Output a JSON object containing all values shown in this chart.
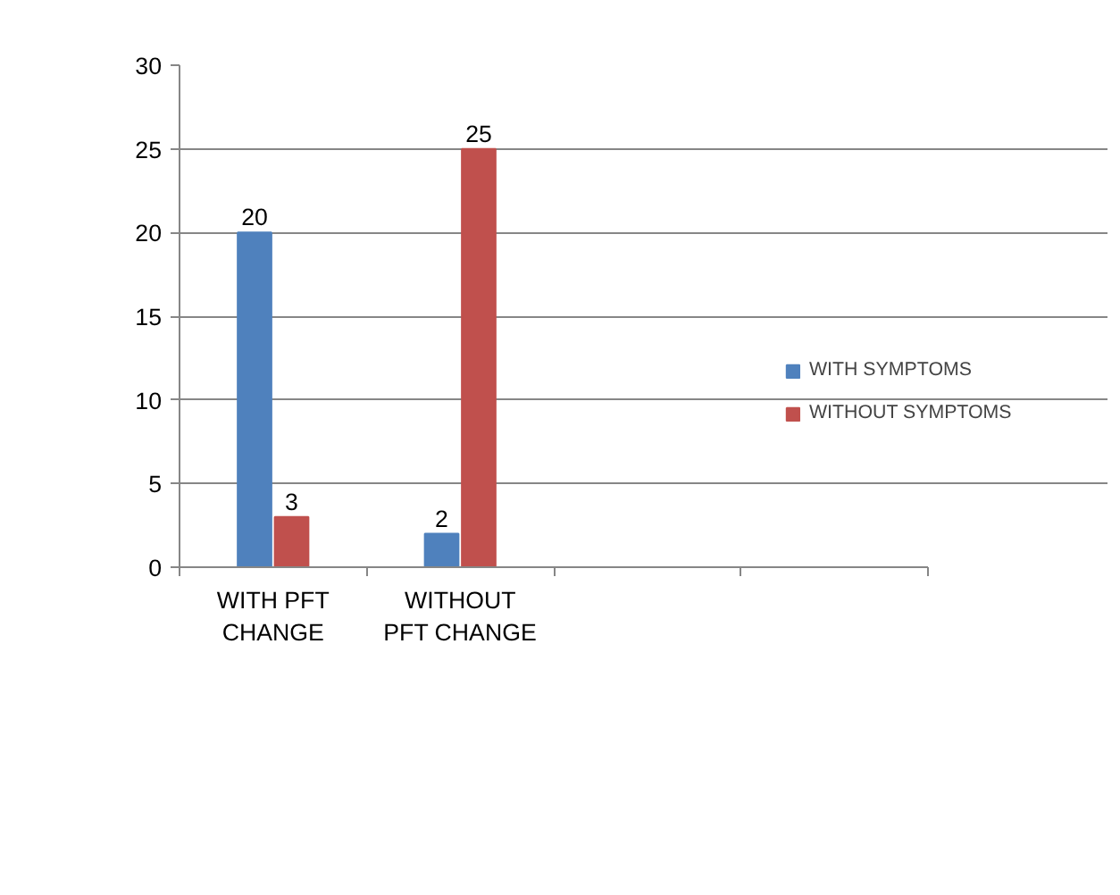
{
  "chart_data": {
    "type": "bar",
    "categories": [
      "WITH PFT\nCHANGE",
      "WITHOUT\nPFT CHANGE",
      null,
      null
    ],
    "series": [
      {
        "name": "WITH SYMPTOMS",
        "color": "#4f81bd",
        "values": [
          20,
          2,
          null,
          null
        ]
      },
      {
        "name": "WITHOUT SYMPTOMS",
        "color": "#c0504d",
        "values": [
          3,
          25,
          null,
          null
        ]
      }
    ],
    "ylim": [
      0,
      30
    ],
    "yticks": [
      0,
      5,
      10,
      15,
      20,
      25,
      30
    ],
    "grid": "y",
    "legend": "right",
    "data_labels": true
  }
}
